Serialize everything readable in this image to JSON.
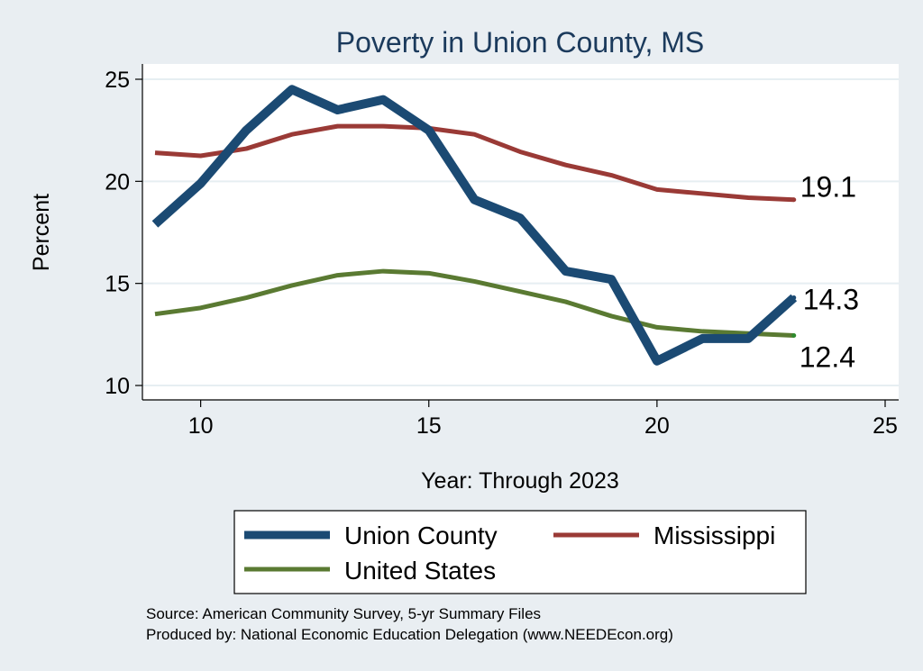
{
  "chart_data": {
    "type": "line",
    "title": "Poverty in Union County, MS",
    "xlabel": "Year: Through 2023",
    "ylabel": "Percent",
    "xlim": [
      9,
      25
    ],
    "ylim": [
      10,
      25
    ],
    "xticks": [
      10,
      15,
      20,
      25
    ],
    "yticks": [
      10,
      15,
      20,
      25
    ],
    "grid": "horizontal",
    "legend_position": "bottom",
    "series": [
      {
        "name": "Union County",
        "color": "#1b4a73",
        "x": [
          9,
          10,
          11,
          12,
          13,
          14,
          15,
          16,
          17,
          18,
          19,
          20,
          21,
          22,
          23
        ],
        "values": [
          17.9,
          19.9,
          22.5,
          24.5,
          23.5,
          24.0,
          22.5,
          19.1,
          18.2,
          15.6,
          15.2,
          11.2,
          12.3,
          12.3,
          14.3
        ],
        "end_label": "14.3"
      },
      {
        "name": "Mississippi",
        "color": "#9a3a36",
        "x": [
          9,
          10,
          11,
          12,
          13,
          14,
          15,
          16,
          17,
          18,
          19,
          20,
          21,
          22,
          23
        ],
        "values": [
          21.4,
          21.25,
          21.6,
          22.3,
          22.7,
          22.7,
          22.6,
          22.3,
          21.45,
          20.8,
          20.3,
          19.6,
          19.4,
          19.2,
          19.1
        ],
        "end_label": "19.1"
      },
      {
        "name": "United States",
        "color": "#5a7a32",
        "x": [
          9,
          10,
          11,
          12,
          13,
          14,
          15,
          16,
          17,
          18,
          19,
          20,
          21,
          22,
          23
        ],
        "values": [
          13.5,
          13.8,
          14.3,
          14.9,
          15.4,
          15.6,
          15.5,
          15.1,
          14.6,
          14.1,
          13.4,
          12.85,
          12.65,
          12.55,
          12.45
        ],
        "end_label": "12.4"
      }
    ]
  },
  "notes": [
    "Source: American Community Survey, 5-yr Summary Files",
    "Produced by: National Economic Education Delegation (www.NEEDEcon.org)"
  ]
}
